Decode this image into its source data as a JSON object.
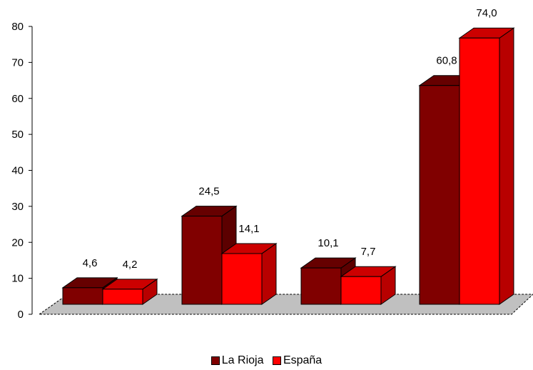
{
  "chart_data": {
    "type": "bar",
    "categories": [
      "",
      "",
      "",
      ""
    ],
    "series": [
      {
        "name": "La Rioja",
        "values": [
          4.6,
          24.5,
          10.1,
          60.8
        ],
        "labels": [
          "4,6",
          "24,5",
          "10,1",
          "60,8"
        ],
        "color": "#800000"
      },
      {
        "name": "España",
        "values": [
          4.2,
          14.1,
          7.7,
          74.0
        ],
        "labels": [
          "4,2",
          "14,1",
          "7,7",
          "74,0"
        ],
        "color": "#ff0000"
      }
    ],
    "yticks": [
      "0",
      "10",
      "20",
      "30",
      "40",
      "50",
      "60",
      "70",
      "80"
    ],
    "ylim": [
      0,
      80
    ],
    "title": "",
    "xlabel": "",
    "ylabel": "",
    "legend_position": "bottom",
    "floor_color": "#c0c0c0"
  }
}
